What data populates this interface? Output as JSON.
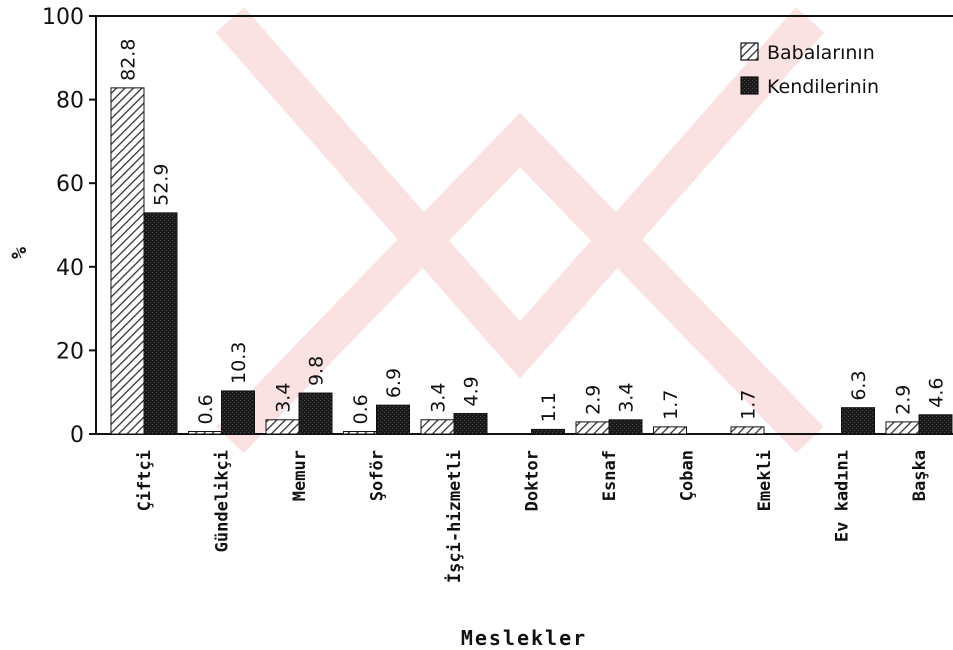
{
  "chart_data": {
    "type": "bar",
    "xlabel": "Meslekler",
    "ylabel": "%",
    "ylim": [
      0,
      100
    ],
    "yticks": [
      0,
      20,
      40,
      60,
      80,
      100
    ],
    "categories": [
      "Çiftçi",
      "Gündelikçi",
      "Memur",
      "Şoför",
      "İşçi-hizmetli",
      "Doktor",
      "Esnaf",
      "Çoban",
      "Emekli",
      "Ev kadını",
      "Başka"
    ],
    "series": [
      {
        "name": "Babalarının",
        "values": [
          82.8,
          0.6,
          3.4,
          0.6,
          3.4,
          null,
          2.9,
          1.7,
          1.7,
          null,
          2.9
        ],
        "labels": [
          "82.8",
          "0.6",
          "3.4",
          "0.6",
          "3.4",
          "",
          "2.9",
          "1.7",
          "1.7",
          "",
          "2.9"
        ],
        "color": "#555555",
        "pattern": "hatch"
      },
      {
        "name": "Kendilerinin",
        "values": [
          52.9,
          10.3,
          9.8,
          6.9,
          4.9,
          1.1,
          3.4,
          null,
          null,
          6.3,
          4.6
        ],
        "labels": [
          "52.9",
          "10.3",
          "9.8",
          "6.9",
          "4.9",
          "1.1",
          "3.4",
          "",
          "",
          "6.3",
          "4.6"
        ],
        "color": "#222222",
        "pattern": "solid"
      }
    ],
    "legend_position": "top-right",
    "grid": false
  }
}
